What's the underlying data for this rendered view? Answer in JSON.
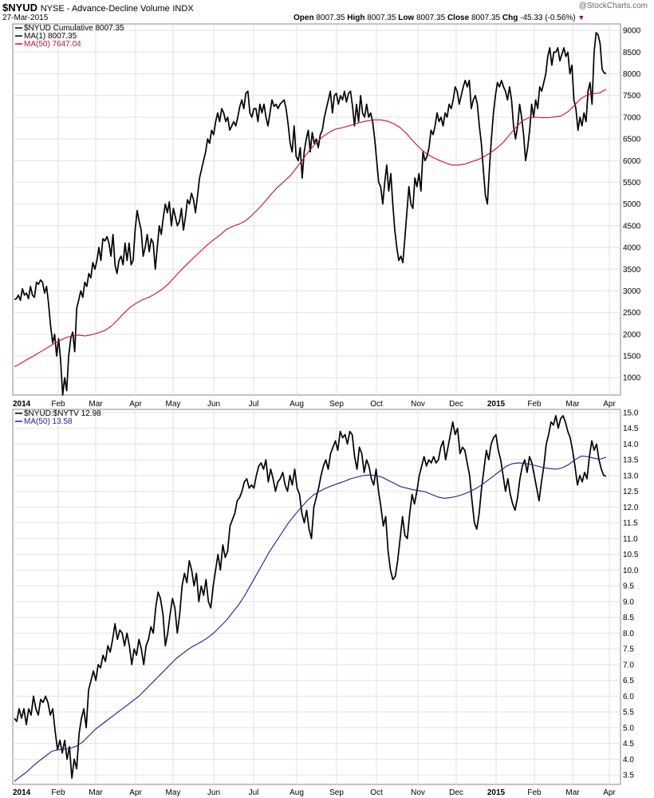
{
  "header": {
    "symbol": "$NYUD",
    "exchange": "NYSE",
    "name": "Advance-Decline Volume",
    "suffix": "INDX",
    "date": "27-Mar-2015",
    "open_label": "Open",
    "open": "8007.35",
    "high_label": "High",
    "high": "8007.35",
    "low_label": "Low",
    "low": "8007.35",
    "close_label": "Close",
    "close": "8007.35",
    "chg_label": "Chg",
    "chg": "-45.33 (-0.56%)",
    "brand": "@StockCharts.com"
  },
  "chart_data": [
    {
      "type": "line",
      "legend": [
        {
          "text": "$NYUD Cumulative 8007.35",
          "color": "#000000"
        },
        {
          "text": "MA(1) 8007.35",
          "color": "#000000"
        },
        {
          "text": "MA(50) 7647.04",
          "color": "#c8102e"
        }
      ],
      "ylim": [
        600,
        9150
      ],
      "yticks": [
        1000,
        1500,
        2000,
        2500,
        3000,
        3500,
        4000,
        4500,
        5000,
        5500,
        6000,
        6500,
        7000,
        7500,
        8000,
        8500,
        9000
      ],
      "months": [
        "2014",
        "Feb",
        "Mar",
        "Apr",
        "May",
        "Jun",
        "Jul",
        "Aug",
        "Sep",
        "Oct",
        "Nov",
        "Dec",
        "2015",
        "Feb",
        "Mar",
        "Apr"
      ],
      "series": [
        {
          "color": "#000000",
          "values": [
            2800,
            2820,
            2900,
            2780,
            3050,
            2900,
            2950,
            2820,
            3100,
            2900,
            2850,
            3200,
            3150,
            3250,
            3200,
            2950,
            3100,
            2700,
            2200,
            1800,
            2000,
            1500,
            1900,
            1400,
            600,
            1000,
            700,
            1500,
            1900,
            2050,
            1600,
            2600,
            2800,
            3000,
            2850,
            3200,
            3100,
            3400,
            3300,
            3650,
            3500,
            3700,
            4000,
            3700,
            4200,
            4150,
            4250,
            4100,
            3800,
            4300,
            3600,
            3400,
            3700,
            3800,
            3600,
            4100,
            3700,
            4100,
            3600,
            3700,
            4400,
            4850,
            4600,
            4400,
            3800,
            4000,
            4300,
            3900,
            4200,
            4100,
            3500,
            4000,
            4500,
            4300,
            4700,
            5000,
            4800,
            5050,
            4500,
            4900,
            4700,
            4500,
            4600,
            4900,
            4400,
            4700,
            5100,
            5000,
            5250,
            5100,
            4800,
            5200,
            5600,
            5800,
            6000,
            6200,
            6500,
            6400,
            6700,
            6600,
            6900,
            7100,
            6900,
            7200,
            7100,
            6900,
            7000,
            6700,
            6800,
            6900,
            6800,
            7000,
            7250,
            7400,
            7200,
            7550,
            7600,
            7100,
            7000,
            7200,
            7200,
            6900,
            7300,
            7100,
            7300,
            7000,
            6800,
            7100,
            7400,
            7250,
            7300,
            7200,
            7300,
            7350,
            7400,
            7200,
            6850,
            6400,
            6200,
            6800,
            6100,
            6000,
            6300,
            5600,
            6200,
            6500,
            6700,
            6200,
            6650,
            6400,
            6500,
            6300,
            6600,
            6700,
            7000,
            7200,
            7400,
            7600,
            7100,
            7500,
            7550,
            7300,
            7500,
            7400,
            7600,
            7350,
            7550,
            7600,
            7250,
            6800,
            7300,
            6900,
            7500,
            7100,
            7000,
            7300,
            7000,
            7100,
            6900,
            6500,
            6000,
            5500,
            5400,
            5000,
            5500,
            5900,
            5300,
            5700,
            5000,
            4400,
            4000,
            3700,
            3800,
            3650,
            4200,
            4800,
            5400,
            5000,
            4900,
            5600,
            5400,
            5700,
            5300,
            6200,
            6000,
            6100,
            6300,
            6700,
            6600,
            6800,
            7100,
            6900,
            7000,
            6800,
            7100,
            7000,
            7300,
            7200,
            7400,
            7700,
            7600,
            7300,
            7500,
            7700,
            7850,
            7700,
            7850,
            7200,
            7400,
            7500,
            7300,
            6800,
            6400,
            5800,
            5200,
            5000,
            5800,
            6500,
            7100,
            7500,
            7800,
            7700,
            7850,
            7700,
            7600,
            7400,
            7700,
            7400,
            6800,
            6500,
            6800,
            7300,
            7000,
            6600,
            6000,
            6300,
            6700,
            7300,
            7000,
            7400,
            7200,
            7700,
            7600,
            7800,
            8000,
            8400,
            8600,
            8200,
            8500,
            8500,
            8600,
            8300,
            8450,
            8600,
            8400,
            8500,
            8000,
            8200,
            7400,
            7200,
            6700,
            7000,
            6800,
            7100,
            6900,
            7600,
            7800,
            7300,
            8500,
            8950,
            8900,
            8700,
            8100,
            8020,
            8007
          ]
        },
        {
          "color": "#c8102e",
          "values": [
            1250,
            1330,
            1420,
            1500,
            1590,
            1680,
            1770,
            1850,
            1920,
            1960,
            1980,
            1960,
            1990,
            2030,
            2080,
            2180,
            2320,
            2480,
            2620,
            2720,
            2800,
            2860,
            2940,
            3040,
            3170,
            3330,
            3490,
            3640,
            3780,
            3920,
            4060,
            4180,
            4290,
            4420,
            4490,
            4540,
            4620,
            4750,
            4900,
            5060,
            5240,
            5400,
            5530,
            5670,
            5860,
            6060,
            6260,
            6420,
            6560,
            6660,
            6730,
            6760,
            6800,
            6850,
            6890,
            6920,
            6940,
            6940,
            6910,
            6850,
            6760,
            6620,
            6450,
            6290,
            6170,
            6080,
            6010,
            5950,
            5900,
            5900,
            5920,
            5970,
            6020,
            6090,
            6180,
            6290,
            6420,
            6600,
            6770,
            6920,
            6990,
            7000,
            6990,
            6990,
            7010,
            7030,
            7120,
            7260,
            7420,
            7510,
            7540,
            7560,
            7647
          ]
        }
      ]
    },
    {
      "type": "line",
      "legend": [
        {
          "text": "$NYUD:$NYTV 12.98",
          "color": "#000000"
        },
        {
          "text": "MA(50) 13.58",
          "color": "#1f1f8f"
        }
      ],
      "ylim": [
        3.2,
        15.1
      ],
      "yticks": [
        3.5,
        4.0,
        4.5,
        5.0,
        5.5,
        6.0,
        6.5,
        7.0,
        7.5,
        8.0,
        8.5,
        9.0,
        9.5,
        10.0,
        10.5,
        11.0,
        11.5,
        12.0,
        12.5,
        13.0,
        13.5,
        14.0,
        14.5,
        15.0
      ],
      "months": [
        "2014",
        "Feb",
        "Mar",
        "Apr",
        "May",
        "Jun",
        "Jul",
        "Aug",
        "Sep",
        "Oct",
        "Nov",
        "Dec",
        "2015",
        "Feb",
        "Mar",
        "Apr"
      ],
      "series": [
        {
          "color": "#000000",
          "values": [
            5.3,
            5.2,
            5.6,
            5.3,
            5.6,
            5.1,
            5.6,
            5.4,
            6.0,
            5.6,
            5.4,
            5.9,
            5.8,
            6.0,
            5.8,
            5.4,
            5.6,
            4.9,
            4.3,
            4.6,
            4.2,
            4.6,
            4.0,
            4.4,
            3.4,
            4.0,
            3.7,
            4.8,
            5.3,
            5.6,
            5.0,
            6.2,
            6.5,
            6.8,
            6.5,
            7.0,
            6.9,
            7.3,
            7.1,
            7.6,
            7.4,
            7.8,
            8.3,
            7.8,
            8.1,
            8.0,
            7.6,
            8.0,
            7.6,
            7.0,
            7.5,
            7.3,
            7.8,
            7.5,
            7.0,
            7.6,
            7.8,
            8.2,
            8.0,
            8.8,
            9.3,
            9.1,
            8.6,
            7.6,
            8.0,
            8.6,
            9.1,
            8.8,
            8.0,
            8.6,
            9.5,
            9.9,
            9.6,
            10.3,
            10.0,
            9.5,
            9.9,
            9.0,
            9.5,
            9.2,
            9.7,
            9.0,
            8.8,
            9.5,
            10.0,
            10.5,
            10.0,
            10.8,
            10.4,
            10.6,
            11.4,
            11.6,
            11.8,
            12.2,
            12.3,
            12.5,
            12.8,
            12.9,
            12.6,
            12.7,
            12.6,
            13.0,
            13.3,
            13.4,
            13.2,
            13.5,
            12.8,
            13.2,
            12.9,
            12.5,
            12.8,
            12.9,
            13.1,
            12.7,
            12.5,
            13.0,
            12.7,
            13.2,
            12.6,
            12.4,
            11.8,
            11.5,
            11.9,
            11.3,
            11.0,
            12.0,
            12.3,
            12.6,
            13.0,
            13.3,
            13.5,
            13.2,
            13.7,
            13.9,
            14.1,
            13.8,
            14.4,
            14.2,
            14.3,
            14.0,
            14.4,
            14.3,
            13.6,
            13.2,
            13.9,
            13.7,
            13.1,
            13.5,
            13.3,
            12.9,
            12.7,
            13.2,
            12.5,
            12.0,
            11.4,
            11.7,
            10.6,
            10.0,
            9.7,
            9.8,
            10.3,
            11.0,
            11.7,
            11.1,
            11.0,
            11.8,
            12.4,
            12.1,
            12.5,
            13.0,
            13.3,
            13.6,
            13.3,
            13.5,
            13.4,
            13.6,
            13.4,
            13.5,
            13.9,
            14.1,
            13.5,
            13.9,
            14.3,
            14.7,
            14.3,
            14.5,
            13.7,
            13.9,
            13.8,
            13.4,
            13.0,
            12.2,
            11.5,
            11.3,
            11.8,
            12.6,
            13.2,
            13.8,
            13.5,
            14.0,
            14.2,
            14.3,
            13.8,
            13.5,
            13.0,
            12.5,
            12.9,
            12.4,
            12.1,
            11.9,
            12.3,
            12.9,
            13.3,
            13.5,
            13.1,
            13.6,
            13.4,
            13.0,
            12.6,
            12.2,
            12.8,
            13.3,
            14.0,
            14.3,
            14.7,
            14.6,
            14.9,
            14.5,
            14.8,
            14.9,
            14.7,
            14.4,
            14.2,
            13.8,
            13.3,
            12.7,
            13.0,
            12.8,
            13.1,
            12.9,
            13.6,
            14.1,
            13.8,
            14.0,
            13.5,
            13.2,
            13.0,
            12.98
          ]
        },
        {
          "color": "#1f1f8f",
          "values": [
            3.3,
            3.45,
            3.6,
            3.78,
            3.95,
            4.1,
            4.25,
            4.3,
            4.32,
            4.35,
            4.42,
            4.55,
            4.75,
            4.95,
            5.1,
            5.25,
            5.4,
            5.55,
            5.7,
            5.85,
            6.0,
            6.2,
            6.4,
            6.6,
            6.8,
            7.0,
            7.2,
            7.35,
            7.5,
            7.62,
            7.72,
            7.85,
            8.0,
            8.2,
            8.4,
            8.65,
            8.9,
            9.2,
            9.55,
            9.9,
            10.25,
            10.6,
            10.9,
            11.2,
            11.5,
            11.75,
            11.98,
            12.2,
            12.38,
            12.5,
            12.6,
            12.68,
            12.75,
            12.82,
            12.9,
            12.95,
            13.0,
            13.02,
            13.0,
            12.95,
            12.85,
            12.75,
            12.65,
            12.6,
            12.55,
            12.52,
            12.48,
            12.4,
            12.32,
            12.28,
            12.3,
            12.34,
            12.4,
            12.48,
            12.58,
            12.7,
            12.85,
            13.0,
            13.15,
            13.3,
            13.38,
            13.4,
            13.38,
            13.35,
            13.3,
            13.25,
            13.22,
            13.2,
            13.25,
            13.35,
            13.5,
            13.62,
            13.6,
            13.55,
            13.52,
            13.58
          ]
        }
      ]
    }
  ]
}
